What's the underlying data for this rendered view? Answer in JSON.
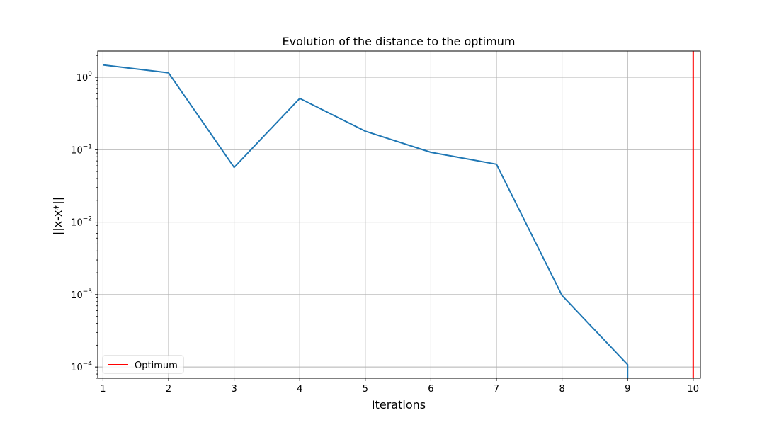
{
  "chart_data": {
    "type": "line",
    "title": "Evolution of the distance to the optimum",
    "xlabel": "Iterations",
    "ylabel": "||x-x*||",
    "xlim": [
      0.92,
      10.11
    ],
    "ylim": [
      7e-05,
      2.3
    ],
    "yscale": "log",
    "grid": true,
    "legend_position": "lower-left",
    "x_ticks": [
      "1",
      "2",
      "3",
      "4",
      "5",
      "6",
      "7",
      "8",
      "9",
      "10"
    ],
    "y_ticks": [
      {
        "value": 1,
        "base": "10",
        "exp": "0"
      },
      {
        "value": 0.1,
        "base": "10",
        "exp": "−1"
      },
      {
        "value": 0.01,
        "base": "10",
        "exp": "−2"
      },
      {
        "value": 0.001,
        "base": "10",
        "exp": "−3"
      },
      {
        "value": 0.0001,
        "base": "10",
        "exp": "−4"
      }
    ],
    "series": [
      {
        "color": "#1f77b4",
        "x": [
          1,
          2,
          3,
          4,
          5,
          6,
          7,
          8,
          9
        ],
        "y": [
          1.48,
          1.15,
          0.057,
          0.51,
          0.18,
          0.092,
          0.063,
          0.00097,
          0.000108
        ]
      }
    ],
    "vlines": [
      {
        "name": "Optimum",
        "x": 10,
        "color": "#ff0000"
      }
    ],
    "legend": [
      {
        "label": "Optimum",
        "color": "#ff0000"
      }
    ]
  }
}
